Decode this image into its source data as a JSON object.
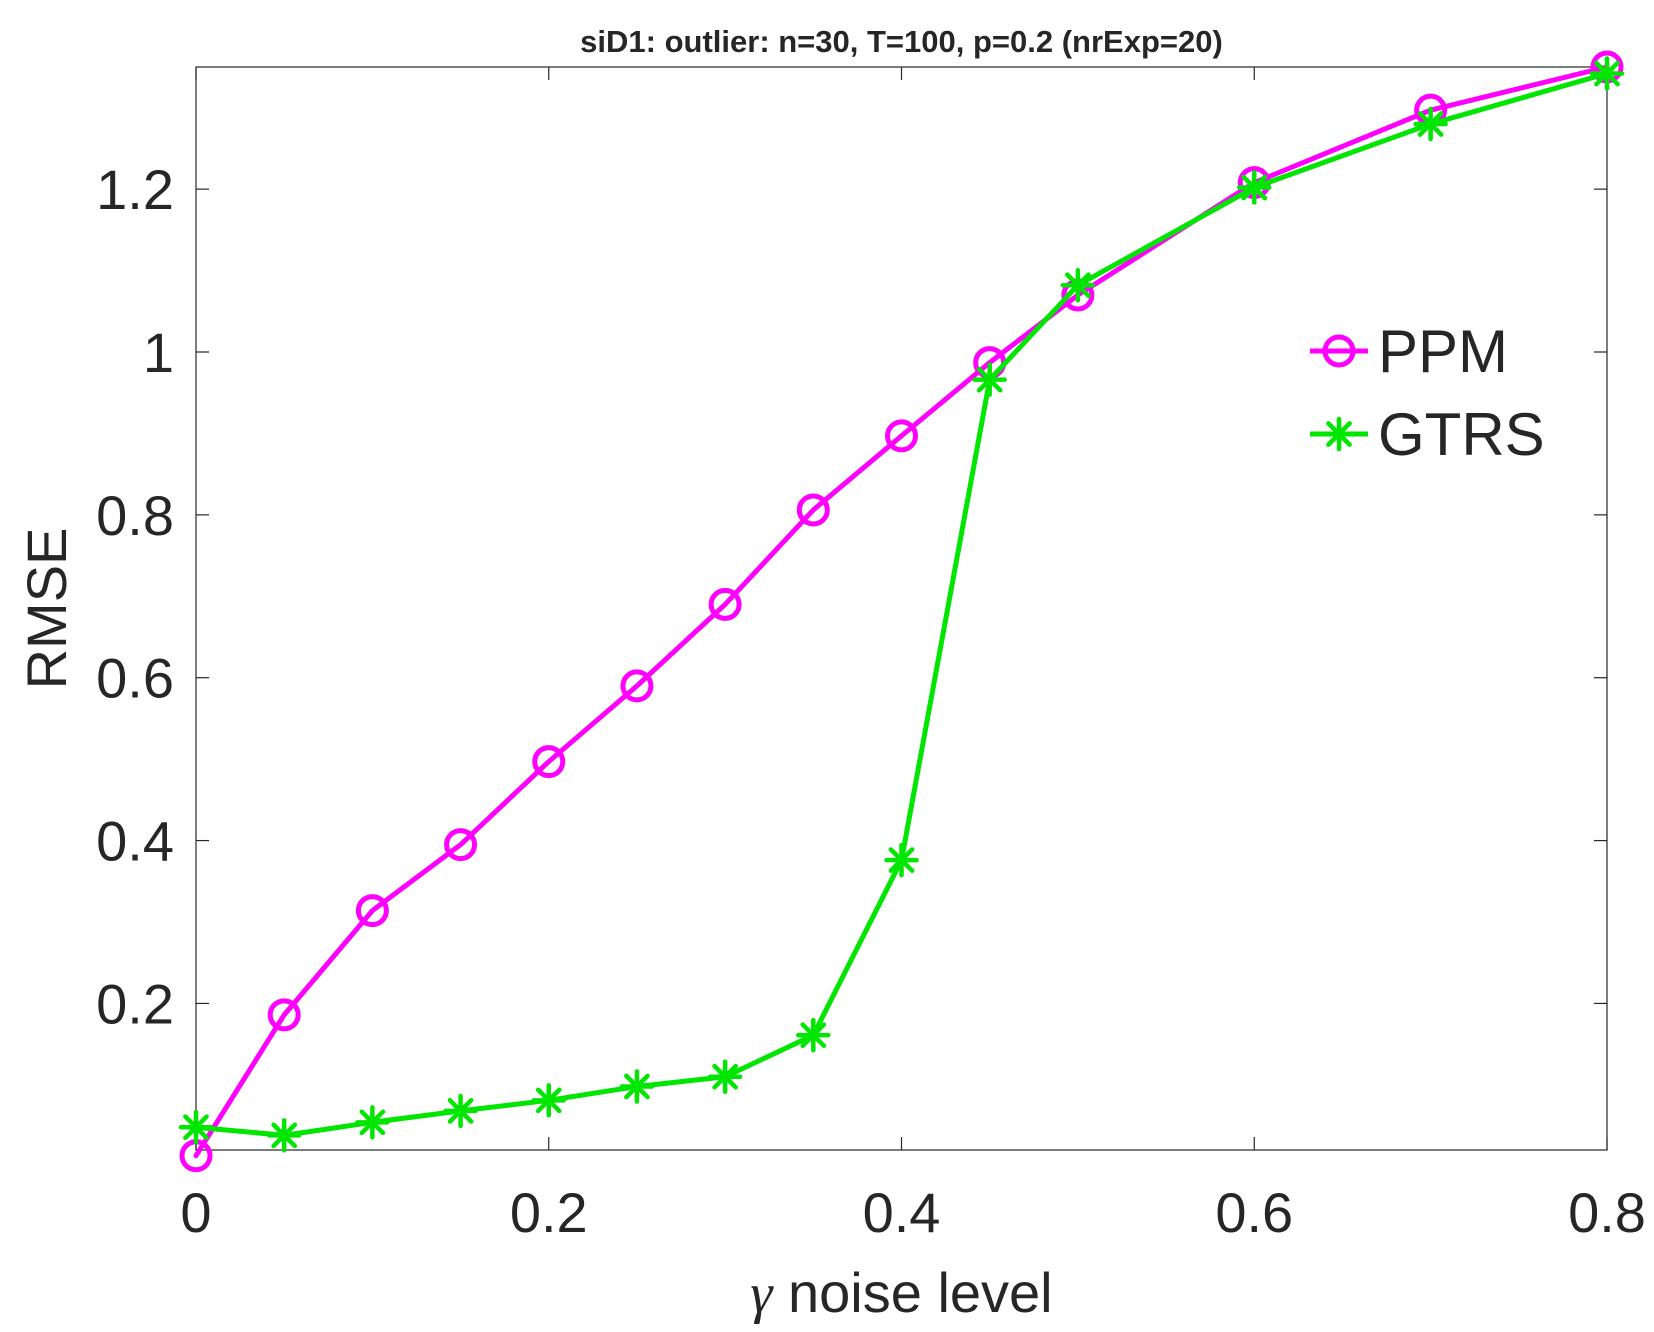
{
  "chart_data": {
    "type": "line",
    "title": "siD1: outlier: n=30, T=100, p=0.2 (nrExp=20)",
    "xlabel_symbol": "γ",
    "xlabel": "noise level",
    "ylabel": "RMSE",
    "xlim": [
      0,
      0.8
    ],
    "ylim": [
      0.02,
      1.35
    ],
    "xticks": [
      0,
      0.2,
      0.4,
      0.6,
      0.8
    ],
    "xtick_labels": [
      "0",
      "0.2",
      "0.4",
      "0.6",
      "0.8"
    ],
    "yticks": [
      0.2,
      0.4,
      0.6,
      0.8,
      1.0,
      1.2
    ],
    "ytick_labels": [
      "0.2",
      "0.4",
      "0.6",
      "0.8",
      "1",
      "1.2"
    ],
    "grid": false,
    "legend_position": "right, upper-middle",
    "x": [
      0,
      0.05,
      0.1,
      0.15,
      0.2,
      0.25,
      0.3,
      0.35,
      0.4,
      0.45,
      0.5,
      0.6,
      0.7,
      0.8
    ],
    "series": [
      {
        "name": "PPM",
        "color": "#ff00ff",
        "marker": "circle",
        "values": [
          0.013,
          0.186,
          0.314,
          0.395,
          0.497,
          0.59,
          0.69,
          0.806,
          0.897,
          0.987,
          1.07,
          1.208,
          1.297,
          1.35
        ]
      },
      {
        "name": "GTRS",
        "color": "#00e600",
        "marker": "asterisk",
        "values": [
          0.048,
          0.038,
          0.054,
          0.068,
          0.081,
          0.098,
          0.11,
          0.161,
          0.376,
          0.966,
          1.082,
          1.202,
          1.28,
          1.342
        ]
      }
    ]
  }
}
